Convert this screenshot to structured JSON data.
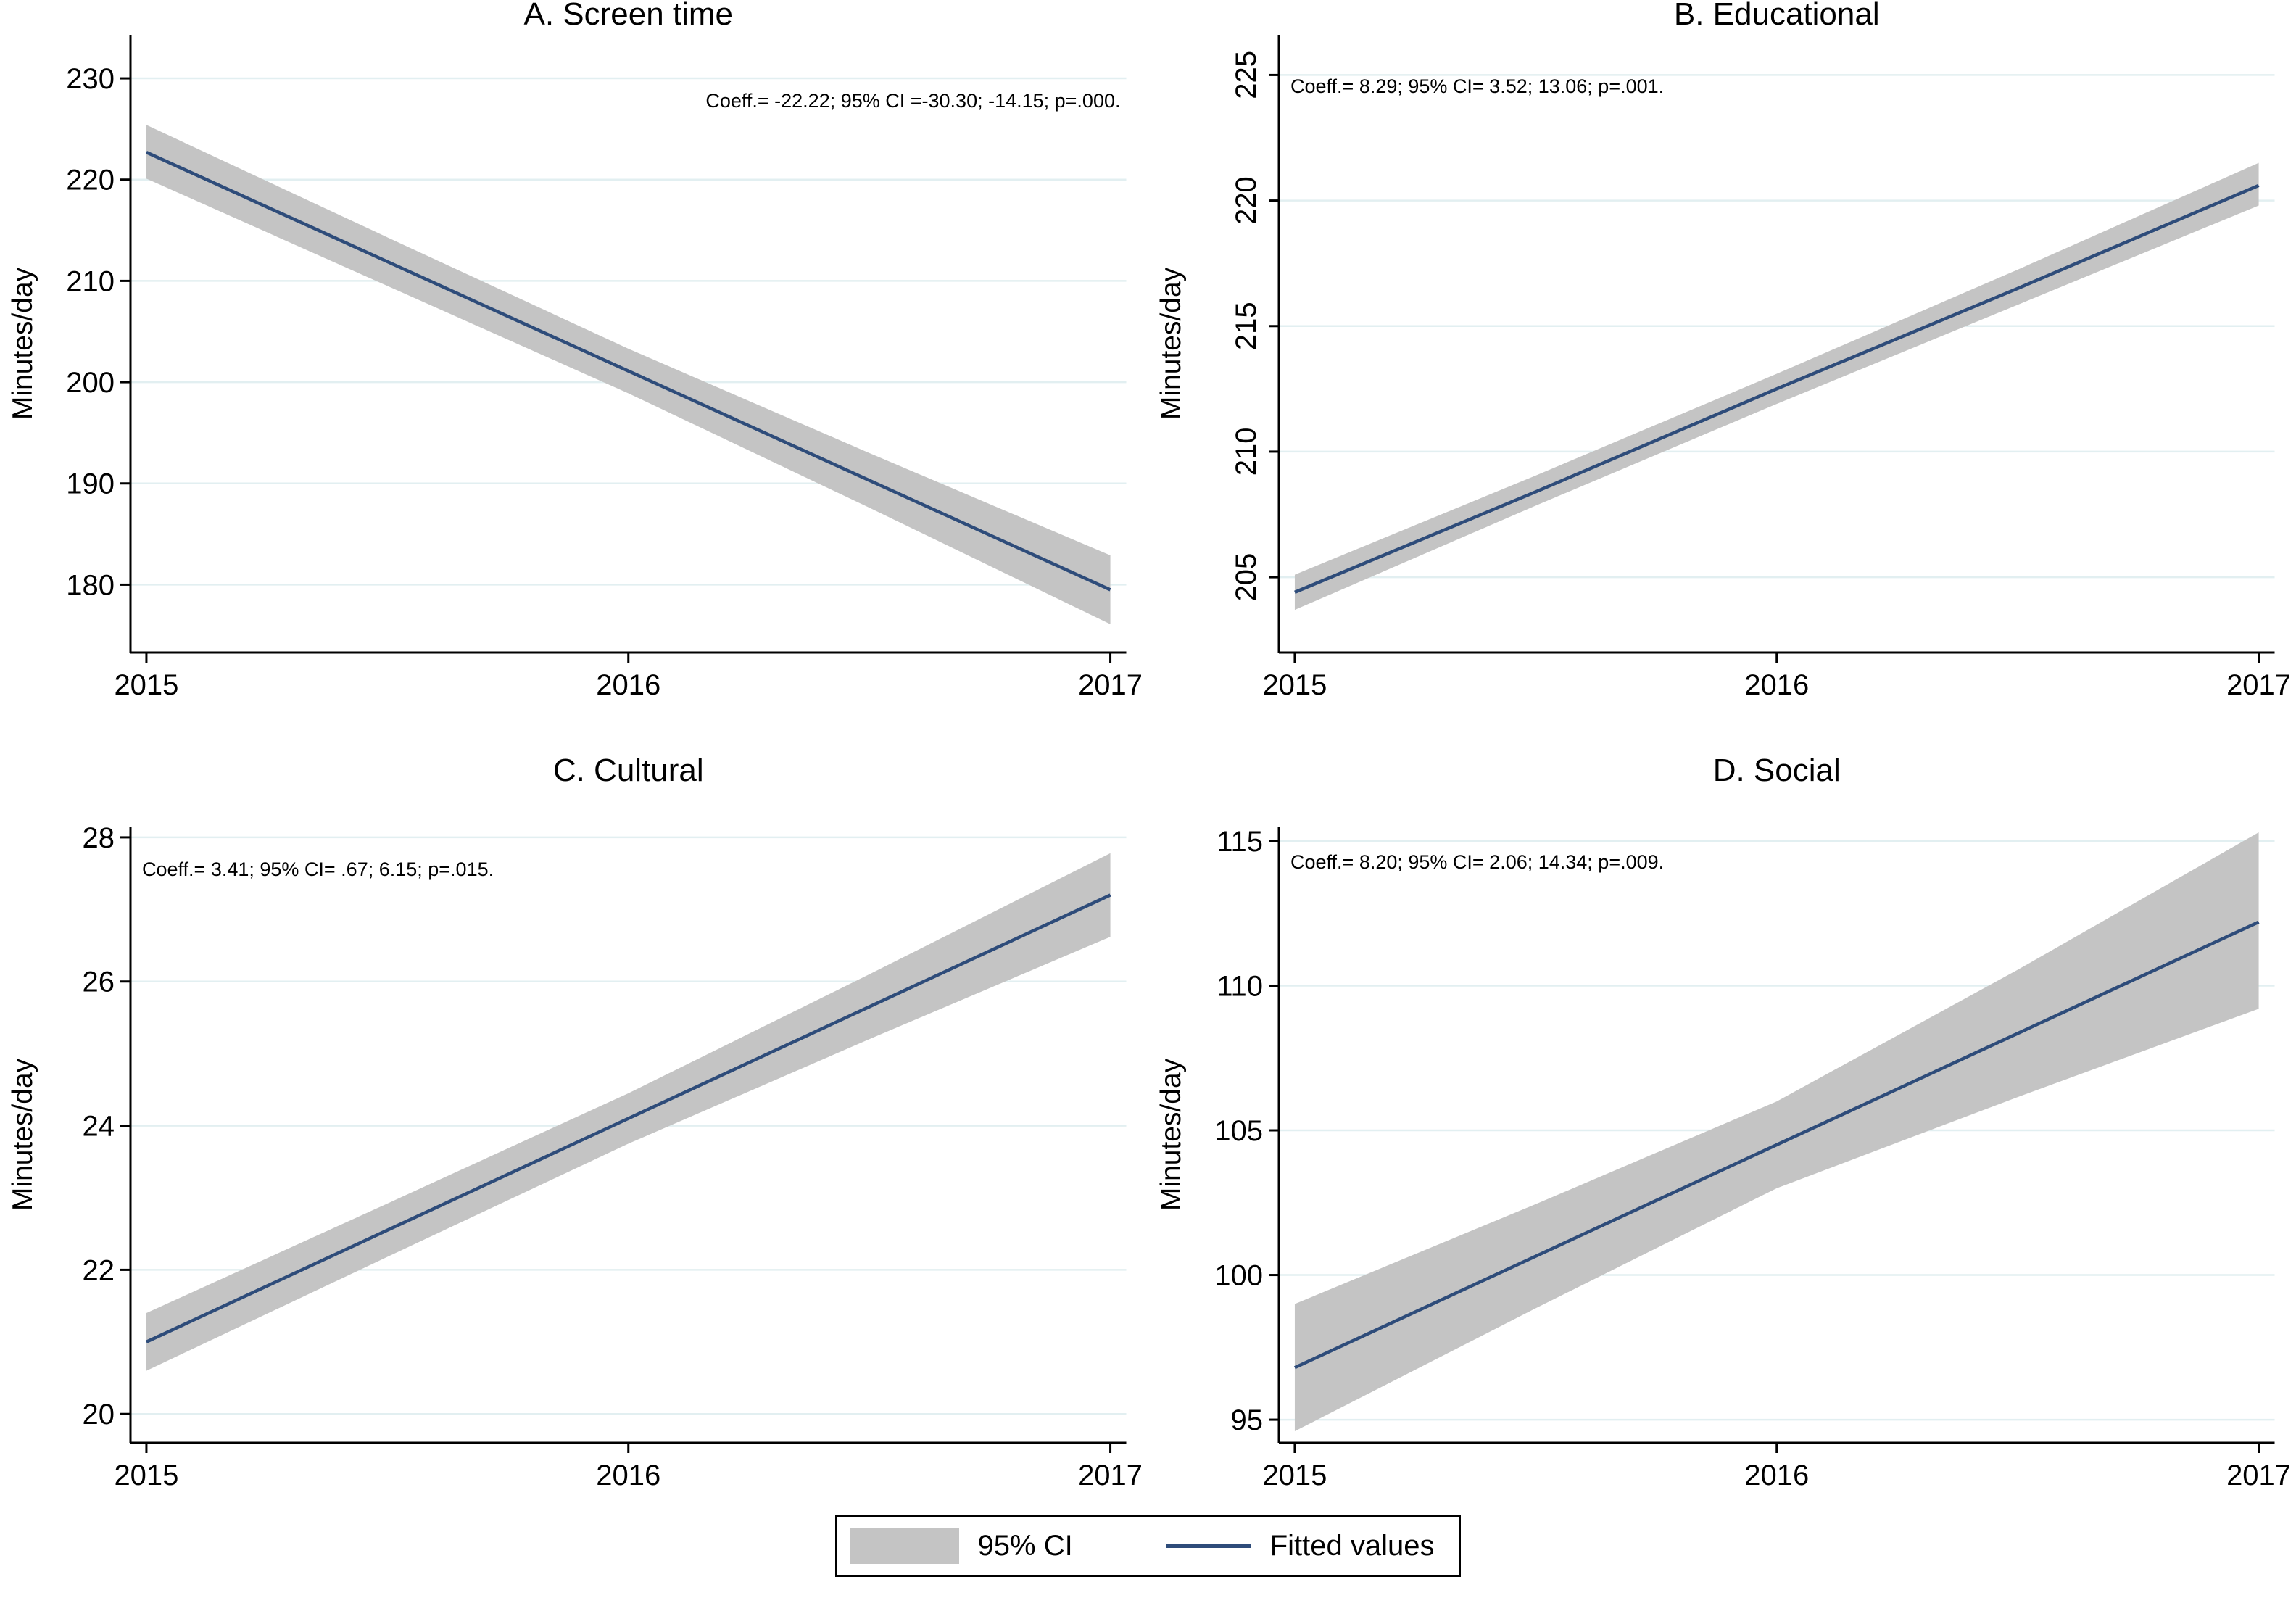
{
  "page": {
    "background": "#ffffff"
  },
  "colors": {
    "title": "#2b3a64",
    "fitted_line": "#2e4c7a",
    "ci_band": "#c4c4c4",
    "gridline": "#e2eff1",
    "axis": "#000000",
    "tick_label": "#000000",
    "annotation": "#000000",
    "legend_border": "#000000"
  },
  "legend": {
    "position": "bottom-center",
    "items": [
      {
        "swatch": "ci-band",
        "label": "95% CI"
      },
      {
        "swatch": "fitted-line",
        "label": "Fitted values"
      }
    ]
  },
  "chart_data": [
    {
      "type": "line",
      "panel_label": "A",
      "title": "A. Screen time",
      "ylabel": "Minutes/day",
      "xlabel": "",
      "annotation": "Coeff.= -22.22; 95% CI =-30.30; -14.15; p=.000.",
      "stats": {
        "coeff": -22.22,
        "ci_low": -30.3,
        "ci_high": -14.15,
        "p": ".000"
      },
      "x": [
        2015,
        2015.5,
        2016,
        2016.5,
        2017
      ],
      "series": [
        {
          "name": "Fitted values",
          "values": [
            222.7,
            211.9,
            201.1,
            190.3,
            179.5
          ]
        },
        {
          "name": "95% CI upper",
          "values": [
            225.4,
            214.3,
            203.3,
            193.0,
            182.9
          ]
        },
        {
          "name": "95% CI lower",
          "values": [
            220.1,
            209.5,
            198.9,
            187.6,
            176.1
          ]
        }
      ],
      "xlim": [
        2014.967,
        2017.033
      ],
      "ylim": [
        173.3,
        234.3
      ],
      "xticks": [
        2015,
        2016,
        2017
      ],
      "yticks": [
        180,
        190,
        200,
        210,
        220,
        230
      ],
      "ytick_vertical": false,
      "grid": true,
      "annotation_align": "right",
      "annotation_offset": 100
    },
    {
      "type": "line",
      "panel_label": "B",
      "title": "B. Educational",
      "ylabel": "Minutes/day",
      "xlabel": "",
      "annotation": "Coeff.= 8.29; 95% CI= 3.52; 13.06; p=.001.",
      "stats": {
        "coeff": 8.29,
        "ci_low": 3.52,
        "ci_high": 13.06,
        "p": ".001"
      },
      "x": [
        2015,
        2015.5,
        2016,
        2016.5,
        2017
      ],
      "series": [
        {
          "name": "Fitted values",
          "values": [
            204.4,
            208.4,
            212.5,
            216.5,
            220.6
          ]
        },
        {
          "name": "95% CI upper",
          "values": [
            205.1,
            209.05,
            213.1,
            217.25,
            221.5
          ]
        },
        {
          "name": "95% CI lower",
          "values": [
            203.7,
            207.85,
            211.9,
            215.85,
            219.8
          ]
        }
      ],
      "xlim": [
        2014.967,
        2017.033
      ],
      "ylim": [
        202.0,
        226.6
      ],
      "xticks": [
        2015,
        2016,
        2017
      ],
      "yticks": [
        205,
        210,
        215,
        220,
        225
      ],
      "ytick_vertical": true,
      "grid": true,
      "annotation_align": "left",
      "annotation_offset": 80
    },
    {
      "type": "line",
      "panel_label": "C",
      "title": "C. Cultural",
      "ylabel": "Minutes/day",
      "xlabel": "",
      "annotation": "Coeff.= 3.41; 95% CI= .67; 6.15; p=.015.",
      "stats": {
        "coeff": 3.41,
        "ci_low": 0.67,
        "ci_high": 6.15,
        "p": ".015"
      },
      "x": [
        2015,
        2015.5,
        2016,
        2016.5,
        2017
      ],
      "series": [
        {
          "name": "Fitted values",
          "values": [
            21.0,
            22.55,
            24.1,
            25.65,
            27.2
          ]
        },
        {
          "name": "95% CI upper",
          "values": [
            21.4,
            22.92,
            24.45,
            26.1,
            27.78
          ]
        },
        {
          "name": "95% CI lower",
          "values": [
            20.6,
            22.18,
            23.75,
            25.2,
            26.62
          ]
        }
      ],
      "xlim": [
        2014.967,
        2017.033
      ],
      "ylim": [
        19.6,
        28.15
      ],
      "xticks": [
        2015,
        2016,
        2017
      ],
      "yticks": [
        20,
        22,
        24,
        26,
        28
      ],
      "ytick_vertical": false,
      "grid": true,
      "annotation_align": "left",
      "annotation_offset": 68
    },
    {
      "type": "line",
      "panel_label": "D",
      "title": "D. Social",
      "ylabel": "Minutes/day",
      "xlabel": "",
      "annotation": "Coeff.= 8.20; 95% CI= 2.06; 14.34; p=.009.",
      "stats": {
        "coeff": 8.2,
        "ci_low": 2.06,
        "ci_high": 14.34,
        "p": ".009"
      },
      "x": [
        2015,
        2015.5,
        2016,
        2016.5,
        2017
      ],
      "series": [
        {
          "name": "Fitted values",
          "values": [
            96.8,
            100.65,
            104.5,
            108.35,
            112.2
          ]
        },
        {
          "name": "95% CI upper",
          "values": [
            99.0,
            102.45,
            106.0,
            110.55,
            115.3
          ]
        },
        {
          "name": "95% CI lower",
          "values": [
            94.6,
            98.85,
            103.0,
            106.15,
            109.2
          ]
        }
      ],
      "xlim": [
        2014.967,
        2017.033
      ],
      "ylim": [
        94.2,
        115.5
      ],
      "xticks": [
        2015,
        2016,
        2017
      ],
      "yticks": [
        95,
        100,
        105,
        110,
        115
      ],
      "ytick_vertical": false,
      "grid": true,
      "annotation_align": "left",
      "annotation_offset": 58
    }
  ]
}
